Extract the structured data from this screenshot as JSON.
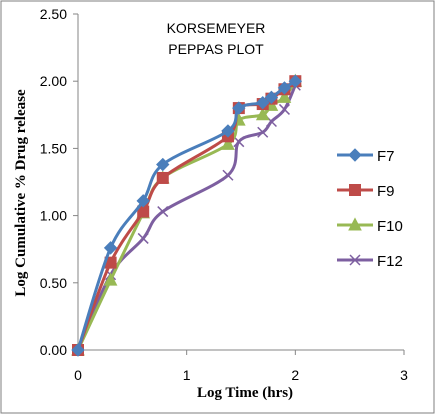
{
  "chart_data": {
    "type": "line",
    "title_lines": [
      "KORSEMEYER",
      "PEPPAS PLOT"
    ],
    "xlabel": "Log Time (hrs)",
    "ylabel": "Log Cumulative % Drug release",
    "xlim": [
      0,
      3
    ],
    "ylim": [
      0,
      2.5
    ],
    "xticks": [
      "0",
      "1",
      "2",
      "3"
    ],
    "yticks": [
      "0.00",
      "0.50",
      "1.00",
      "1.50",
      "2.00",
      "2.50"
    ],
    "grid": false,
    "legend_position": "right",
    "series": [
      {
        "name": "F7",
        "color": "#4a7ebb",
        "marker": "diamond",
        "x": [
          0,
          0.3,
          0.6,
          0.78,
          1.38,
          1.48,
          1.7,
          1.78,
          1.9,
          2.0
        ],
        "y": [
          0,
          0.76,
          1.11,
          1.38,
          1.63,
          1.8,
          1.84,
          1.88,
          1.95,
          2.0
        ]
      },
      {
        "name": "F9",
        "color": "#be4b48",
        "marker": "square",
        "x": [
          0,
          0.3,
          0.6,
          0.78,
          1.38,
          1.48,
          1.7,
          1.78,
          1.9,
          2.0
        ],
        "y": [
          0,
          0.65,
          1.03,
          1.28,
          1.59,
          1.8,
          1.83,
          1.87,
          1.94,
          2.0
        ]
      },
      {
        "name": "F10",
        "color": "#98b954",
        "marker": "triangle",
        "x": [
          0,
          0.3,
          0.6,
          0.78,
          1.38,
          1.48,
          1.7,
          1.78,
          1.9,
          2.0
        ],
        "y": [
          0,
          0.52,
          1.02,
          1.28,
          1.53,
          1.71,
          1.75,
          1.82,
          1.88,
          2.0
        ]
      },
      {
        "name": "F12",
        "color": "#7d5fa0",
        "marker": "x",
        "x": [
          0,
          0.3,
          0.6,
          0.78,
          1.38,
          1.48,
          1.7,
          1.78,
          1.9,
          2.0
        ],
        "y": [
          0,
          0.56,
          0.83,
          1.03,
          1.3,
          1.55,
          1.62,
          1.7,
          1.79,
          1.97
        ]
      }
    ]
  }
}
